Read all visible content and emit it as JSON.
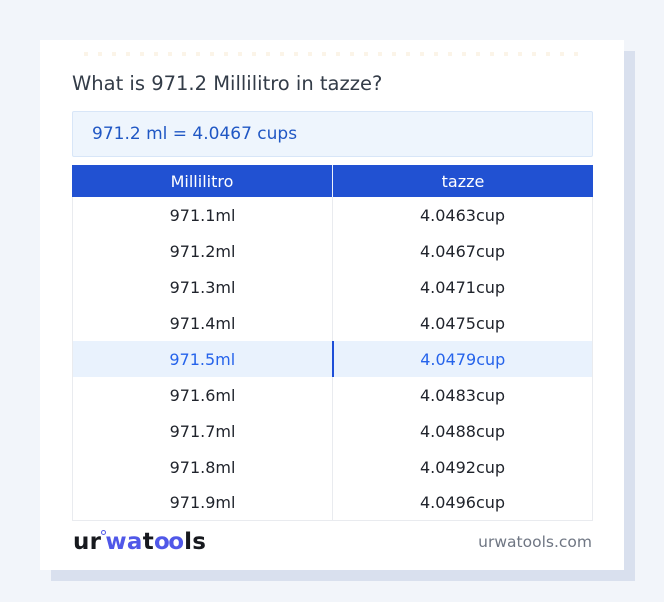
{
  "page": {
    "title": "What is 971.2 Millilitro in tazze?",
    "result_text": "971.2 ml = 4.0467 cups"
  },
  "table": {
    "columns": {
      "from": "Millilitro",
      "to": "tazze"
    },
    "rows": [
      {
        "ml": "971.1ml",
        "cup": "4.0463cup",
        "highlight": false
      },
      {
        "ml": "971.2ml",
        "cup": "4.0467cup",
        "highlight": false
      },
      {
        "ml": "971.3ml",
        "cup": "4.0471cup",
        "highlight": false
      },
      {
        "ml": "971.4ml",
        "cup": "4.0475cup",
        "highlight": false
      },
      {
        "ml": "971.5ml",
        "cup": "4.0479cup",
        "highlight": true
      },
      {
        "ml": "971.6ml",
        "cup": "4.0483cup",
        "highlight": false
      },
      {
        "ml": "971.7ml",
        "cup": "4.0488cup",
        "highlight": false
      },
      {
        "ml": "971.8ml",
        "cup": "4.0492cup",
        "highlight": false
      },
      {
        "ml": "971.9ml",
        "cup": "4.0496cup",
        "highlight": false
      }
    ]
  },
  "footer": {
    "logo": {
      "p1": "ur",
      "p2": "wa",
      "p3": "t",
      "p4": "oo",
      "p5": "ls"
    },
    "site": "urwatools.com"
  },
  "colors": {
    "page_background": "#f2f5fa",
    "card_background": "#ffffff",
    "card_shadow": "#d9e0ee",
    "table_header": "#2151d2",
    "result_box_background": "#eef5fd",
    "result_box_border": "#d8e6f8",
    "result_text": "#2057c4",
    "highlight_row_background": "#e9f2fd",
    "highlight_row_text": "#2563eb",
    "highlight_divider": "#1d4ed8",
    "logo_accent": "#5058e8"
  }
}
